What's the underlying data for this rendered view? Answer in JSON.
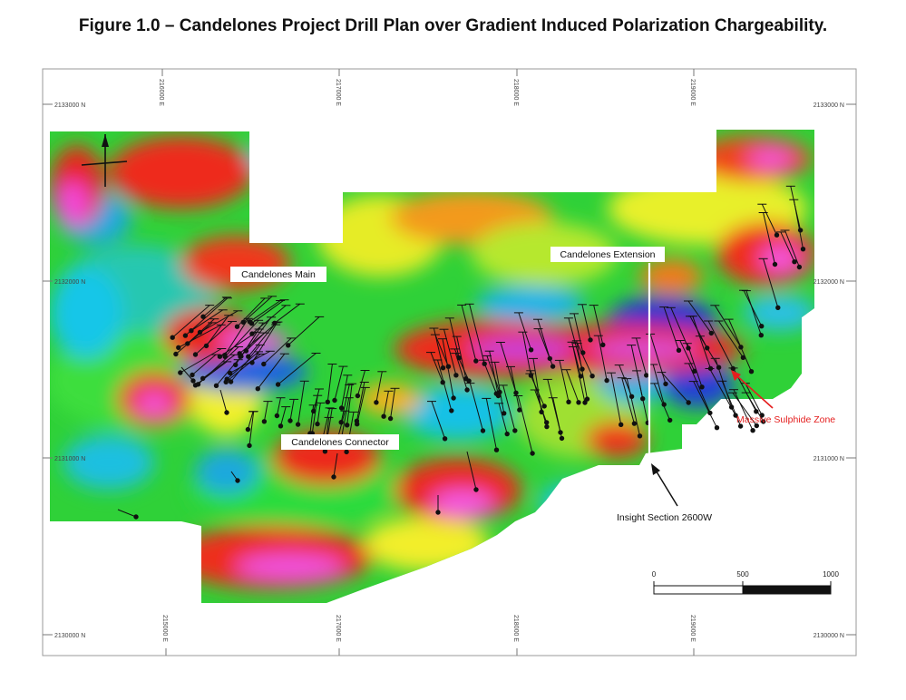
{
  "title": "Figure 1.0 – Candelones Project Drill Plan over Gradient Induced Polarization Chargeability.",
  "grid": {
    "northing_top": "2133000 N",
    "northing_2132": "2132000 N",
    "northing_2131": "2131000 N",
    "northing_bottom": "2130000 N",
    "easting_top": [
      "216000 E",
      "217000 E",
      "218000 E",
      "219000 E"
    ],
    "easting_bottom": [
      "215000 E",
      "217000 E",
      "218000 E",
      "219000 E"
    ]
  },
  "labels": {
    "main": "Candelones Main",
    "extension": "Candelones Extension",
    "connector": "Candelones Connector",
    "massive_sulphide": "Massive Sulphide Zone",
    "insight_section": "Insight Section 2600W"
  },
  "scale_bar": {
    "ticks": [
      "0",
      "500",
      "1000"
    ]
  },
  "colors": {
    "massive_sulphide_label": "#e41e1e",
    "colormap_low": "#1a2fd6",
    "colormap_high": "#ff44dd"
  },
  "icons": {
    "north_arrow": "north-arrow-icon"
  }
}
